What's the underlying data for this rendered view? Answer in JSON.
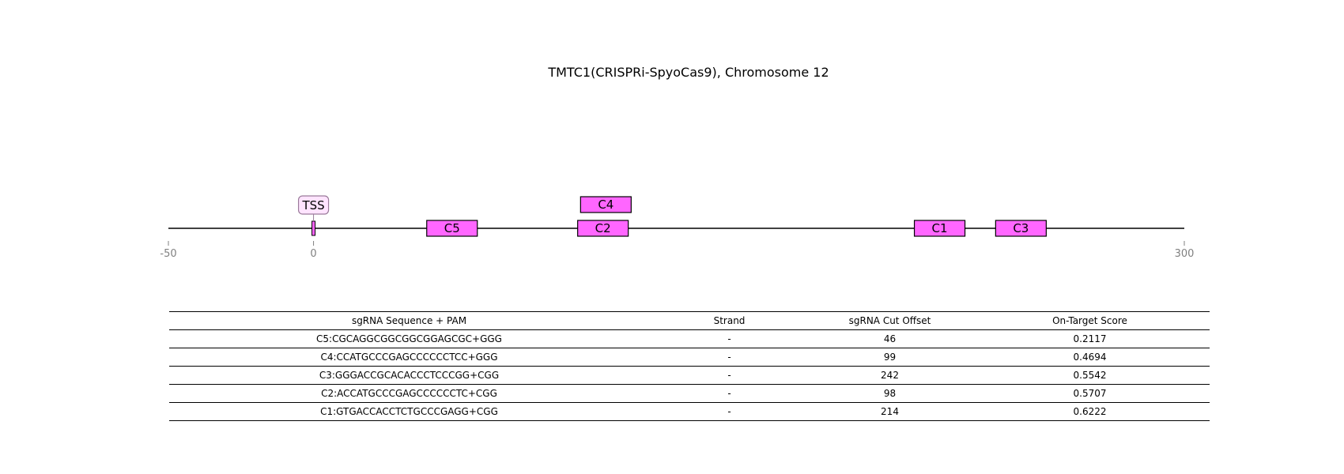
{
  "title": "TMTC1(CRISPRi-SpyoCas9), Chromosome 12",
  "colors": {
    "guide_fill": "#ff66ff",
    "tss_label_fill": "#ffe4ff",
    "tss_label_border": "#9a7a9a",
    "axis_tick": "#808080"
  },
  "chart_data": {
    "type": "table",
    "axis": {
      "xlim": [
        -50,
        300
      ],
      "ticks": [
        -50,
        0,
        300
      ]
    },
    "tss": {
      "label": "TSS",
      "position": 0
    },
    "guides": [
      {
        "label": "C5",
        "position": 39,
        "row": 0
      },
      {
        "label": "C4",
        "position": 92,
        "row": 1
      },
      {
        "label": "C2",
        "position": 91,
        "row": 0
      },
      {
        "label": "C1",
        "position": 207,
        "row": 0
      },
      {
        "label": "C3",
        "position": 235,
        "row": 0
      }
    ],
    "table": {
      "columns": [
        "sgRNA Sequence + PAM",
        "Strand",
        "sgRNA Cut Offset",
        "On-Target Score"
      ],
      "rows": [
        [
          "C5:CGCAGGCGGCGGCGGAGCGC+GGG",
          "-",
          "46",
          "0.2117"
        ],
        [
          "C4:CCATGCCCGAGCCCCCCTCC+GGG",
          "-",
          "99",
          "0.4694"
        ],
        [
          "C3:GGGACCGCACACCCTCCCGG+CGG",
          "-",
          "242",
          "0.5542"
        ],
        [
          "C2:ACCATGCCCGAGCCCCCCTC+CGG",
          "-",
          "98",
          "0.5707"
        ],
        [
          "C1:GTGACCACCTCTGCCCGAGG+CGG",
          "-",
          "214",
          "0.6222"
        ]
      ]
    }
  }
}
